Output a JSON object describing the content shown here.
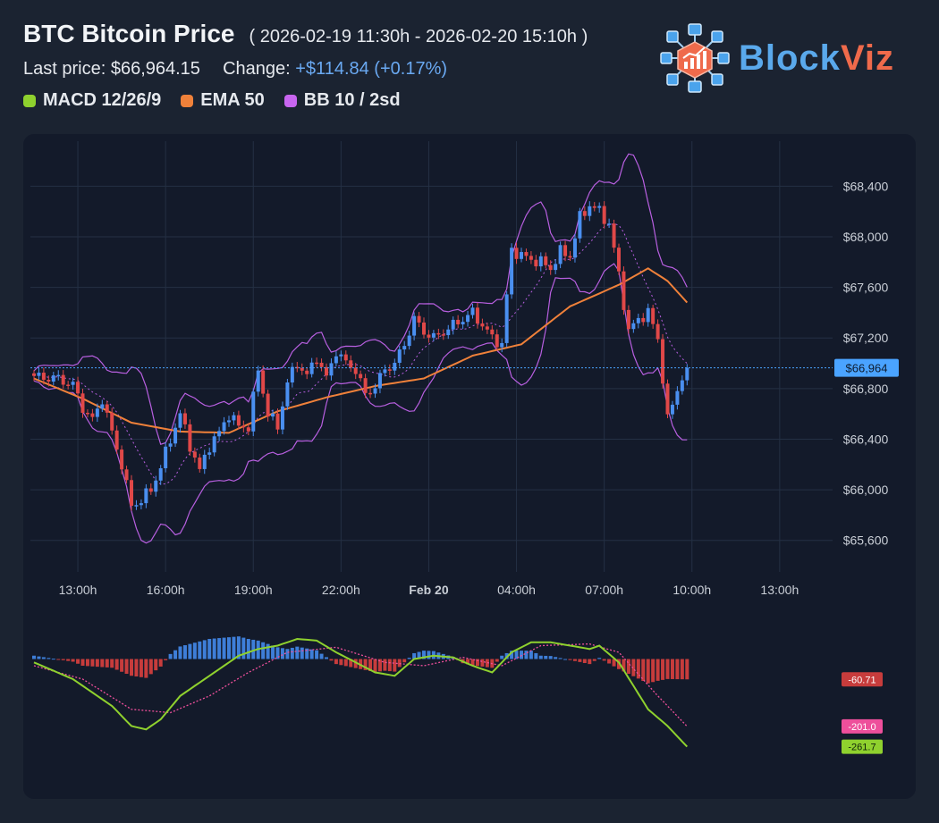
{
  "header": {
    "title": "BTC Bitcoin Price",
    "range": "( 2026-02-19 11:30h - 2026-02-20 15:10h )",
    "last_price_label": "Last price:",
    "last_price": "$66,964.15",
    "change_label": "Change:",
    "change_value": "+$114.84 (+0.17%)"
  },
  "legend": [
    {
      "label": "MACD 12/26/9",
      "color": "#8fd12e"
    },
    {
      "label": "EMA 50",
      "color": "#f0813a"
    },
    {
      "label": "BB 10 / 2sd",
      "color": "#c865f0"
    }
  ],
  "brand": {
    "part1": "Block",
    "part2": "Viz",
    "color1": "#5aa9ec",
    "color2": "#ef6a4b",
    "icon": "blockchain-chart-logo-icon"
  },
  "colors": {
    "up": "#4a8ff0",
    "down": "#e04848",
    "ema": "#f0813a",
    "bb": "#b85fe0",
    "macd": "#8fd12e",
    "signal": "#ee4f9b",
    "hist_pos": "#3e7ed8",
    "hist_neg": "#c73c3c",
    "last_price": "#4aa3ff"
  },
  "chart_data": [
    {
      "type": "candlestick",
      "name": "price",
      "ylim": [
        65400,
        68600
      ],
      "yticks": [
        65600,
        66000,
        66400,
        66800,
        67200,
        67600,
        68000,
        68400
      ],
      "ytick_labels": [
        "$65,600",
        "$66,000",
        "$66,400",
        "$66,800",
        "$67,200",
        "$67,600",
        "$68,000",
        "$68,400"
      ],
      "x_tick_labels": [
        "13:00h",
        "16:00h",
        "19:00h",
        "22:00h",
        "Feb 20",
        "04:00h",
        "07:00h",
        "10:00h",
        "13:00h"
      ],
      "x_tick_index": [
        9,
        27,
        45,
        63,
        81,
        99,
        117,
        135,
        153
      ],
      "last_price": 66964,
      "last_price_label": "$66,964",
      "interval_minutes": 10,
      "close_anchors": [
        [
          0,
          66900
        ],
        [
          2,
          66880
        ],
        [
          4,
          66890
        ],
        [
          6,
          66860
        ],
        [
          8,
          66830
        ],
        [
          10,
          66650
        ],
        [
          12,
          66550
        ],
        [
          14,
          66720
        ],
        [
          16,
          66450
        ],
        [
          18,
          66200
        ],
        [
          20,
          65870
        ],
        [
          22,
          65920
        ],
        [
          24,
          66000
        ],
        [
          26,
          66180
        ],
        [
          28,
          66400
        ],
        [
          30,
          66600
        ],
        [
          32,
          66350
        ],
        [
          34,
          66150
        ],
        [
          36,
          66350
        ],
        [
          38,
          66450
        ],
        [
          40,
          66600
        ],
        [
          42,
          66500
        ],
        [
          44,
          66500
        ],
        [
          46,
          66950
        ],
        [
          48,
          66600
        ],
        [
          50,
          66500
        ],
        [
          52,
          66850
        ],
        [
          54,
          67000
        ],
        [
          56,
          66900
        ],
        [
          58,
          67050
        ],
        [
          60,
          66880
        ],
        [
          62,
          67100
        ],
        [
          64,
          67000
        ],
        [
          66,
          66950
        ],
        [
          68,
          66750
        ],
        [
          70,
          66820
        ],
        [
          72,
          66950
        ],
        [
          74,
          67000
        ],
        [
          76,
          67150
        ],
        [
          78,
          67350
        ],
        [
          80,
          67250
        ],
        [
          82,
          67200
        ],
        [
          84,
          67250
        ],
        [
          86,
          67300
        ],
        [
          88,
          67350
        ],
        [
          90,
          67400
        ],
        [
          92,
          67300
        ],
        [
          94,
          67200
        ],
        [
          96,
          67150
        ],
        [
          98,
          67900
        ],
        [
          100,
          67850
        ],
        [
          102,
          67820
        ],
        [
          104,
          67800
        ],
        [
          106,
          67750
        ],
        [
          108,
          67880
        ],
        [
          110,
          67850
        ],
        [
          112,
          68150
        ],
        [
          114,
          68250
        ],
        [
          116,
          68200
        ],
        [
          118,
          68100
        ],
        [
          120,
          67700
        ],
        [
          122,
          67250
        ],
        [
          124,
          67350
        ],
        [
          126,
          67400
        ],
        [
          128,
          67200
        ],
        [
          130,
          66550
        ],
        [
          132,
          66800
        ],
        [
          134,
          66964
        ]
      ],
      "ema50_anchors": [
        [
          0,
          66880
        ],
        [
          10,
          66720
        ],
        [
          20,
          66530
        ],
        [
          30,
          66460
        ],
        [
          40,
          66450
        ],
        [
          50,
          66620
        ],
        [
          60,
          66730
        ],
        [
          70,
          66820
        ],
        [
          80,
          66880
        ],
        [
          90,
          67060
        ],
        [
          100,
          67150
        ],
        [
          110,
          67450
        ],
        [
          120,
          67620
        ],
        [
          126,
          67750
        ],
        [
          130,
          67650
        ],
        [
          134,
          67480
        ]
      ],
      "bollinger": {
        "period": 10,
        "stddev": 2
      }
    },
    {
      "type": "macd",
      "name": "MACD 12/26/9",
      "params": [
        12,
        26,
        9
      ],
      "ylim": [
        -300,
        60
      ],
      "labels": {
        "histogram": "-60.71",
        "signal": "-201.0",
        "macd": "-261.7"
      },
      "macd_anchors": [
        [
          0,
          -10
        ],
        [
          8,
          -60
        ],
        [
          16,
          -140
        ],
        [
          20,
          -200
        ],
        [
          23,
          -210
        ],
        [
          26,
          -180
        ],
        [
          30,
          -110
        ],
        [
          34,
          -70
        ],
        [
          38,
          -30
        ],
        [
          42,
          10
        ],
        [
          46,
          30
        ],
        [
          50,
          40
        ],
        [
          54,
          60
        ],
        [
          58,
          55
        ],
        [
          62,
          20
        ],
        [
          66,
          -10
        ],
        [
          70,
          -40
        ],
        [
          74,
          -50
        ],
        [
          78,
          0
        ],
        [
          82,
          10
        ],
        [
          86,
          5
        ],
        [
          90,
          -20
        ],
        [
          94,
          -40
        ],
        [
          98,
          20
        ],
        [
          102,
          50
        ],
        [
          106,
          50
        ],
        [
          110,
          40
        ],
        [
          114,
          30
        ],
        [
          116,
          40
        ],
        [
          120,
          -10
        ],
        [
          126,
          -150
        ],
        [
          130,
          -200
        ],
        [
          134,
          -261.7
        ]
      ],
      "signal_anchors": [
        [
          0,
          -20
        ],
        [
          10,
          -60
        ],
        [
          20,
          -150
        ],
        [
          28,
          -160
        ],
        [
          36,
          -110
        ],
        [
          44,
          -40
        ],
        [
          52,
          20
        ],
        [
          62,
          35
        ],
        [
          72,
          -10
        ],
        [
          80,
          -20
        ],
        [
          88,
          5
        ],
        [
          96,
          -20
        ],
        [
          104,
          40
        ],
        [
          114,
          45
        ],
        [
          120,
          20
        ],
        [
          128,
          -110
        ],
        [
          134,
          -201.0
        ]
      ],
      "histogram_last": -60.71
    }
  ]
}
